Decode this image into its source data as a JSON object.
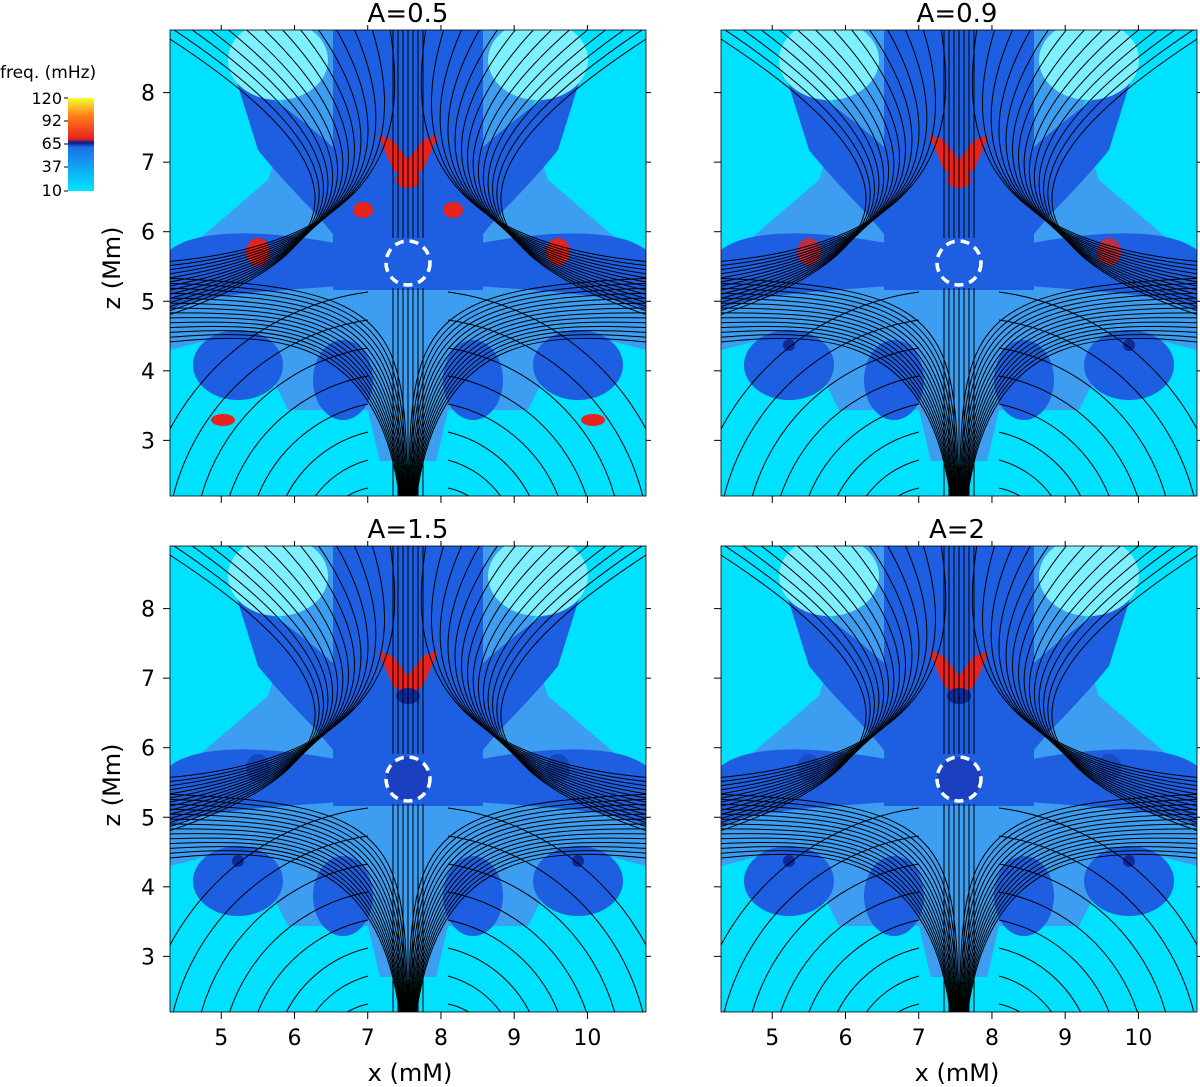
{
  "chart_data": {
    "type": "heatmap",
    "panels": [
      {
        "title": "A=0.5",
        "red_level": 1.0
      },
      {
        "title": "A=0.9",
        "red_level": 0.8
      },
      {
        "title": "A=1.5",
        "red_level": 0.45
      },
      {
        "title": "A=2",
        "red_level": 0.35
      }
    ],
    "xlabel": "x (mM)",
    "ylabel": "z (Mm)",
    "xlim": [
      4.3,
      10.8
    ],
    "ylim": [
      2.2,
      8.9
    ],
    "xticks": [
      5,
      6,
      7,
      8,
      9,
      10
    ],
    "yticks": [
      3,
      4,
      5,
      6,
      7,
      8
    ],
    "null_point": {
      "x": 7.55,
      "z": 5.55,
      "radius": 0.3
    },
    "colorbar": {
      "title": "freq. (mHz)",
      "ticks": [
        "120",
        "92",
        "65",
        "37",
        "10"
      ],
      "range": [
        10,
        120
      ],
      "colors": [
        "#00e5ff",
        "#1e6fe8",
        "#0a1c86",
        "#e8221c",
        "#f5ff2e"
      ]
    },
    "field_line_color": "#000000"
  }
}
